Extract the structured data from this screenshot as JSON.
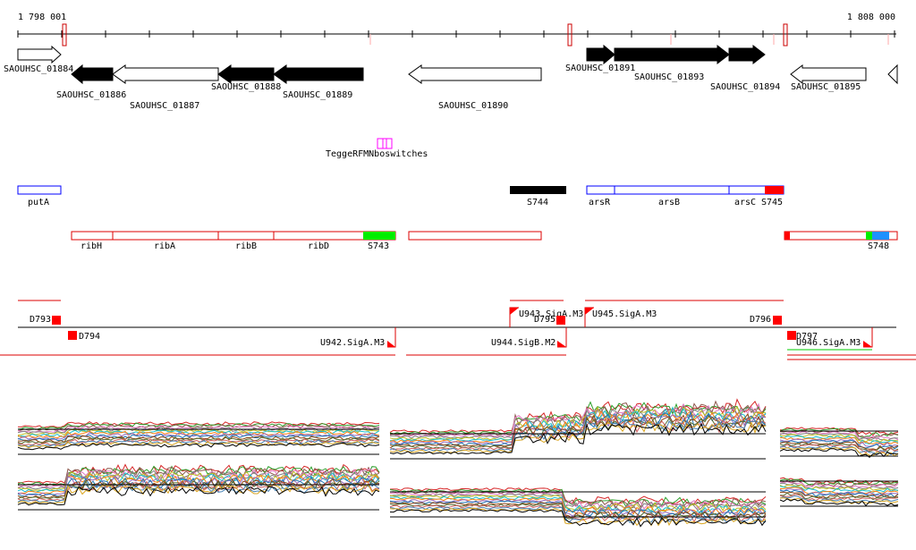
{
  "coordinates": {
    "start": "1 798 001",
    "end": "1 808 000"
  },
  "genes": [
    {
      "name": "SAOUHSC_01884",
      "strand": "+",
      "fill": "#ffffff"
    },
    {
      "name": "SAOUHSC_01886",
      "strand": "-",
      "fill": "#000000"
    },
    {
      "name": "SAOUHSC_01887",
      "strand": "-",
      "fill": "#ffffff"
    },
    {
      "name": "SAOUHSC_01888",
      "strand": "-",
      "fill": "#000000"
    },
    {
      "name": "SAOUHSC_01889",
      "strand": "-",
      "fill": "#000000"
    },
    {
      "name": "SAOUHSC_01890",
      "strand": "-",
      "fill": "#ffffff"
    },
    {
      "name": "SAOUHSC_01891",
      "strand": "+",
      "fill": "#000000"
    },
    {
      "name": "SAOUHSC_01893",
      "strand": "+",
      "fill": "#000000"
    },
    {
      "name": "SAOUHSC_01894",
      "strand": "+",
      "fill": "#000000"
    },
    {
      "name": "SAOUHSC_01895",
      "strand": "-",
      "fill": "#ffffff"
    }
  ],
  "riboswitch": {
    "label": "TeggeRFMNboswitches"
  },
  "operons_blue": [
    {
      "name": "putA"
    },
    {
      "name": "arsR"
    },
    {
      "name": "arsB"
    },
    {
      "name": "arsC"
    },
    {
      "name": "S745"
    },
    {
      "name": "S744"
    }
  ],
  "operons_red": [
    {
      "name": "ribH"
    },
    {
      "name": "ribA"
    },
    {
      "name": "ribB"
    },
    {
      "name": "ribD"
    },
    {
      "name": "S743"
    },
    {
      "name": "S748"
    }
  ],
  "transcription_units": [
    {
      "name": "D793"
    },
    {
      "name": "D794"
    },
    {
      "name": "U942.SigA.M3"
    },
    {
      "name": "U943.SigA.M3"
    },
    {
      "name": "D795"
    },
    {
      "name": "U944.SigB.M2"
    },
    {
      "name": "U945.SigA.M3"
    },
    {
      "name": "D796"
    },
    {
      "name": "D797"
    },
    {
      "name": "U946.SigA.M3"
    }
  ],
  "colors": {
    "feature_red": "#ff0000",
    "operon_blue": "#0000ff",
    "sRNA_green": "#00ee00",
    "sRNA_blue": "#1e90ff",
    "riboswitch_magenta": "#ff00ff",
    "line_red": "#dd0000"
  }
}
